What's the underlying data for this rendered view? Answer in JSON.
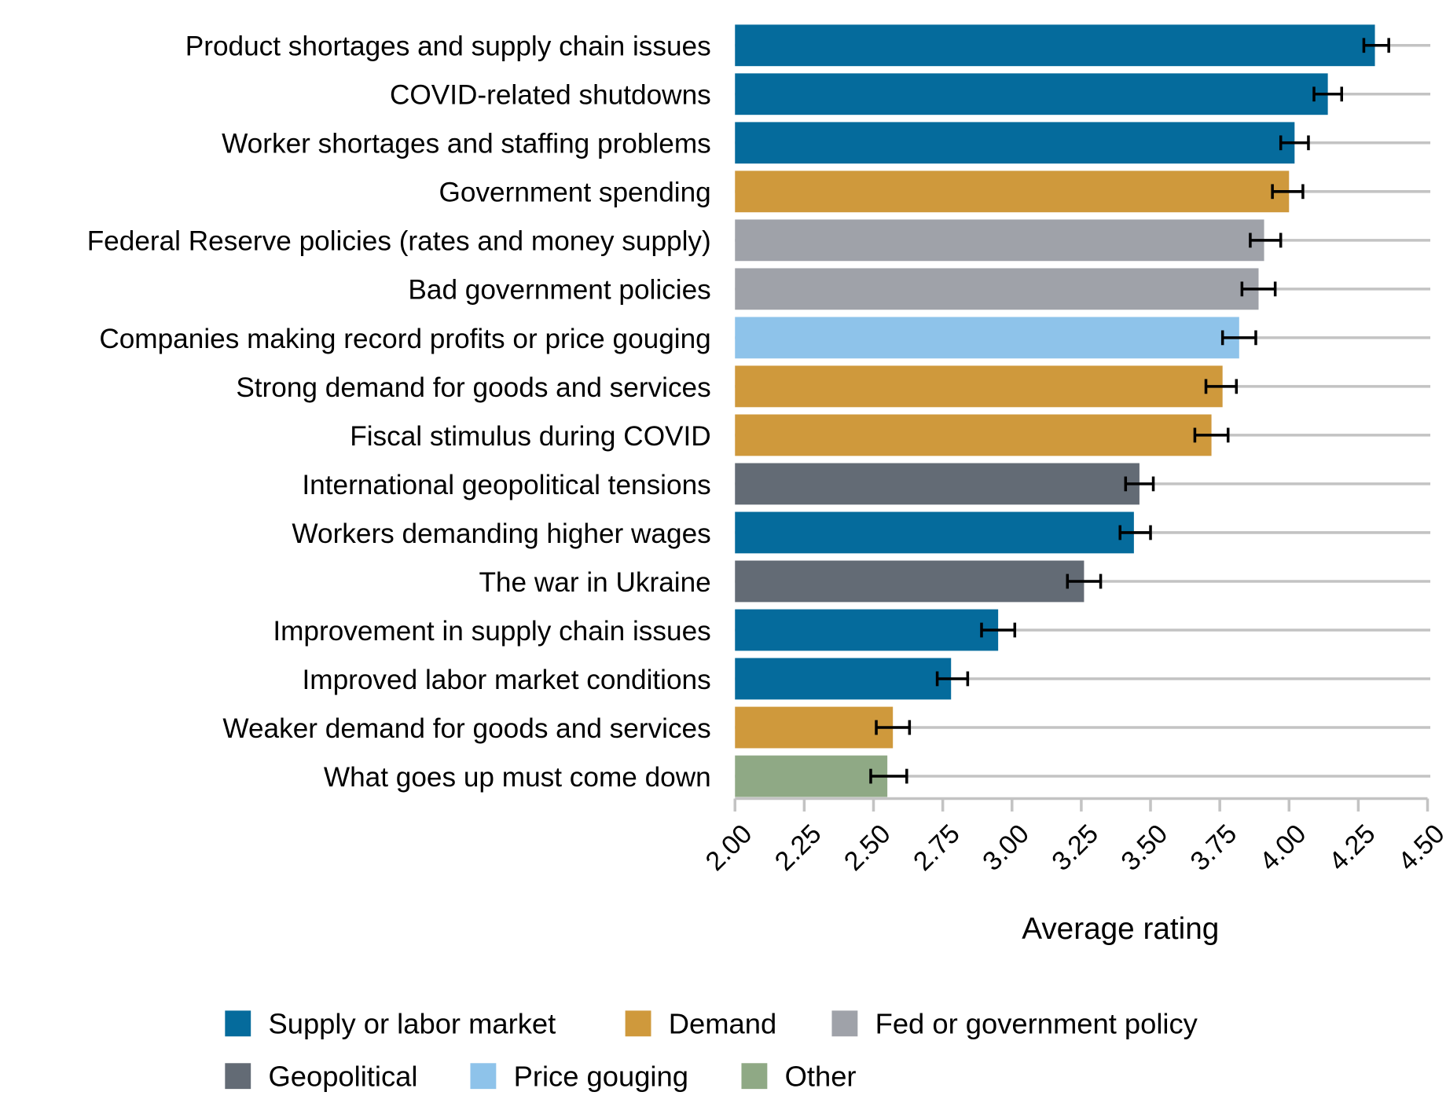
{
  "chart_data": {
    "type": "bar",
    "orientation": "horizontal",
    "title": "",
    "xlabel": "Average rating",
    "ylabel": "",
    "xlim": [
      2.0,
      4.5
    ],
    "xticks": [
      "2.00",
      "2.25",
      "2.50",
      "2.75",
      "3.00",
      "3.25",
      "3.50",
      "3.75",
      "4.00",
      "4.25",
      "4.50"
    ],
    "grid": "horizontal guide lines per category",
    "legend_position": "bottom",
    "groups": [
      {
        "key": "supply",
        "name": "Supply or labor market",
        "color": "#056b9c"
      },
      {
        "key": "demand",
        "name": "Demand",
        "color": "#cf993c"
      },
      {
        "key": "fed",
        "name": "Fed or government policy",
        "color": "#9fa2a9"
      },
      {
        "key": "geo",
        "name": "Geopolitical",
        "color": "#636b75"
      },
      {
        "key": "price",
        "name": "Price gouging",
        "color": "#8ec3ea"
      },
      {
        "key": "other",
        "name": "Other",
        "color": "#8fa985"
      }
    ],
    "categories": [
      {
        "label": "Product shortages and supply chain issues",
        "group": "supply",
        "value": 4.31,
        "err_low": 4.27,
        "err_high": 4.36
      },
      {
        "label": "COVID-related shutdowns",
        "group": "supply",
        "value": 4.14,
        "err_low": 4.09,
        "err_high": 4.19
      },
      {
        "label": "Worker shortages and staffing problems",
        "group": "supply",
        "value": 4.02,
        "err_low": 3.97,
        "err_high": 4.07
      },
      {
        "label": "Government spending",
        "group": "demand",
        "value": 4.0,
        "err_low": 3.94,
        "err_high": 4.05
      },
      {
        "label": "Federal Reserve policies (rates and money supply)",
        "group": "fed",
        "value": 3.91,
        "err_low": 3.86,
        "err_high": 3.97
      },
      {
        "label": "Bad government policies",
        "group": "fed",
        "value": 3.89,
        "err_low": 3.83,
        "err_high": 3.95
      },
      {
        "label": "Companies making record profits or price gouging",
        "group": "price",
        "value": 3.82,
        "err_low": 3.76,
        "err_high": 3.88
      },
      {
        "label": "Strong demand for goods and services",
        "group": "demand",
        "value": 3.76,
        "err_low": 3.7,
        "err_high": 3.81
      },
      {
        "label": "Fiscal stimulus during COVID",
        "group": "demand",
        "value": 3.72,
        "err_low": 3.66,
        "err_high": 3.78
      },
      {
        "label": "International geopolitical tensions",
        "group": "geo",
        "value": 3.46,
        "err_low": 3.41,
        "err_high": 3.51
      },
      {
        "label": "Workers demanding higher wages",
        "group": "supply",
        "value": 3.44,
        "err_low": 3.39,
        "err_high": 3.5
      },
      {
        "label": "The war in Ukraine",
        "group": "geo",
        "value": 3.26,
        "err_low": 3.2,
        "err_high": 3.32
      },
      {
        "label": "Improvement in supply chain issues",
        "group": "supply",
        "value": 2.95,
        "err_low": 2.89,
        "err_high": 3.01
      },
      {
        "label": "Improved labor market conditions",
        "group": "supply",
        "value": 2.78,
        "err_low": 2.73,
        "err_high": 2.84
      },
      {
        "label": "Weaker demand for goods and services",
        "group": "demand",
        "value": 2.57,
        "err_low": 2.51,
        "err_high": 2.63
      },
      {
        "label": "What goes up must come down",
        "group": "other",
        "value": 2.55,
        "err_low": 2.49,
        "err_high": 2.62
      }
    ]
  }
}
